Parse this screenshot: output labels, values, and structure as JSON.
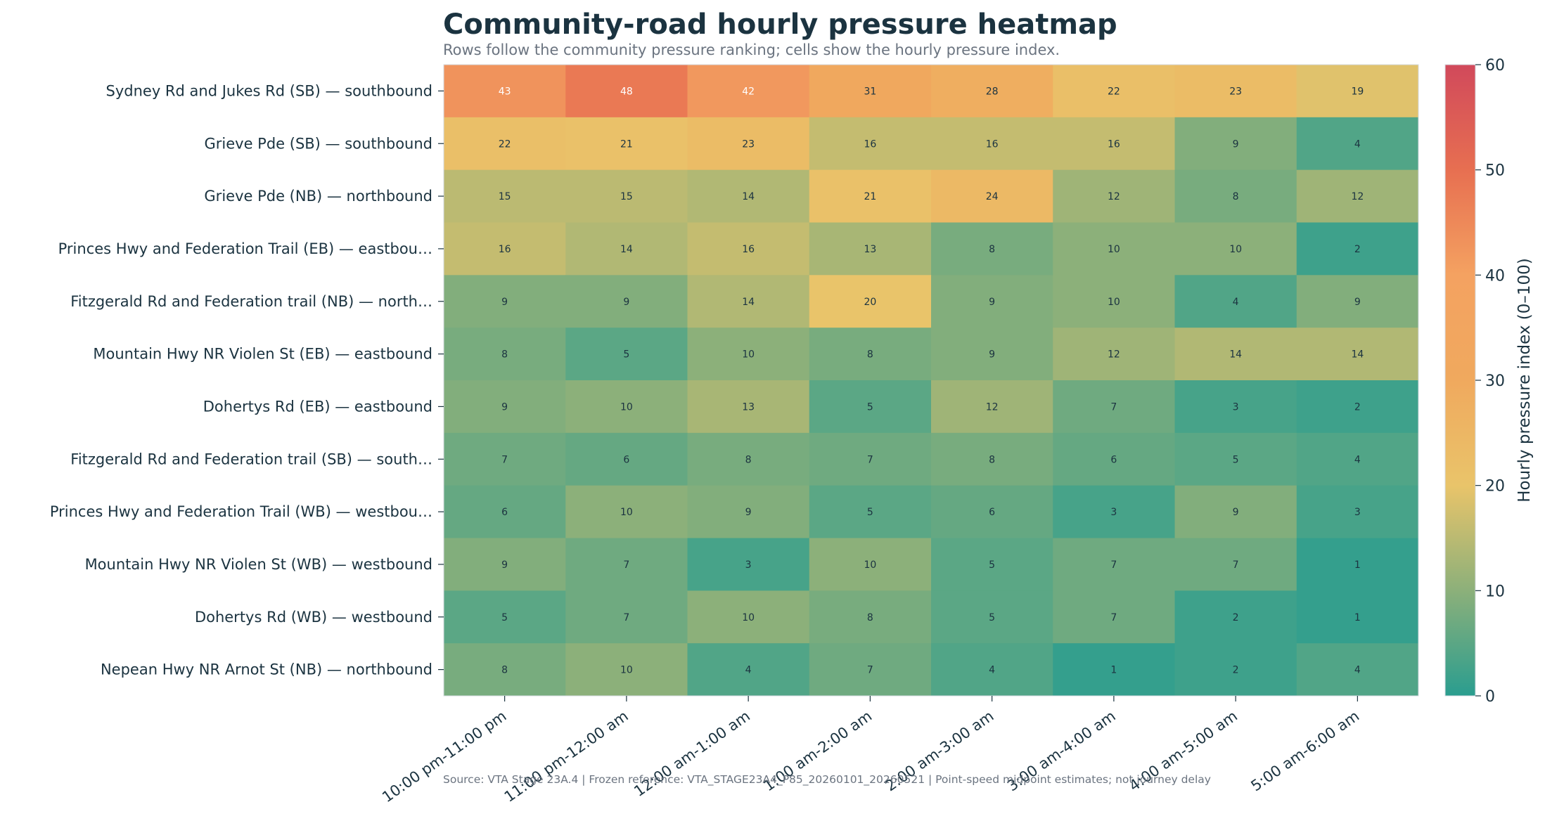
{
  "chart_data": {
    "type": "heatmap",
    "title": "Community-road hourly pressure heatmap",
    "subtitle": "Rows follow the community pressure ranking; cells show the hourly pressure index.",
    "x_categories": [
      "10:00 pm-11:00 pm",
      "11:00 pm-12:00 am",
      "12:00 am-1:00 am",
      "1:00 am-2:00 am",
      "2:00 am-3:00 am",
      "3:00 am-4:00 am",
      "4:00 am-5:00 am",
      "5:00 am-6:00 am"
    ],
    "y_categories": [
      "Sydney Rd and Jukes Rd (SB) — southbound",
      "Grieve Pde (SB) — southbound",
      "Grieve Pde (NB) — northbound",
      "Princes Hwy and Federation Trail (EB) — eastbou…",
      "Fitzgerald Rd and Federation trail (NB) — north…",
      "Mountain Hwy NR Violen St (EB) — eastbound",
      "Dohertys Rd (EB) — eastbound",
      "Fitzgerald Rd and Federation trail (SB) — south…",
      "Princes Hwy and Federation Trail (WB) — westbou…",
      "Mountain Hwy NR Violen St (WB) — westbound",
      "Dohertys Rd (WB) — westbound",
      "Nepean Hwy NR Arnot St (NB) — northbound"
    ],
    "values": [
      [
        43,
        48,
        42,
        31,
        28,
        22,
        23,
        19
      ],
      [
        22,
        21,
        23,
        16,
        16,
        16,
        9,
        4
      ],
      [
        15,
        15,
        14,
        21,
        24,
        12,
        8,
        12
      ],
      [
        16,
        14,
        16,
        13,
        8,
        10,
        10,
        2
      ],
      [
        9,
        9,
        14,
        20,
        9,
        10,
        4,
        9
      ],
      [
        8,
        5,
        10,
        8,
        9,
        12,
        14,
        14
      ],
      [
        9,
        10,
        13,
        5,
        12,
        7,
        3,
        2
      ],
      [
        7,
        6,
        8,
        7,
        8,
        6,
        5,
        4
      ],
      [
        6,
        10,
        9,
        5,
        6,
        3,
        9,
        3
      ],
      [
        9,
        7,
        3,
        10,
        5,
        7,
        7,
        1
      ],
      [
        5,
        7,
        10,
        8,
        5,
        7,
        2,
        1
      ],
      [
        8,
        10,
        4,
        7,
        4,
        1,
        2,
        4
      ]
    ],
    "colorbar": {
      "label": "Hourly pressure index (0–100)",
      "range": [
        0,
        60
      ],
      "ticks": [
        "0",
        "10",
        "20",
        "30",
        "40",
        "50",
        "60"
      ],
      "stops": [
        {
          "v": 0,
          "color": "#2a9d8f"
        },
        {
          "v": 10,
          "color": "#8cb07a"
        },
        {
          "v": 20,
          "color": "#e9c46a"
        },
        {
          "v": 30,
          "color": "#f0a95e"
        },
        {
          "v": 40,
          "color": "#f4a261"
        },
        {
          "v": 50,
          "color": "#e76f51"
        },
        {
          "v": 60,
          "color": "#d1495b"
        }
      ]
    },
    "value_text_light": "#ffffff",
    "value_text_dark": "#1b3340",
    "light_text_threshold": 35,
    "source": "Source: VTA Stage 23A.4 | Frozen reference: VTA_STAGE23A4_P85_20260101_20260521 | Point-speed midpoint estimates; not journey delay"
  }
}
